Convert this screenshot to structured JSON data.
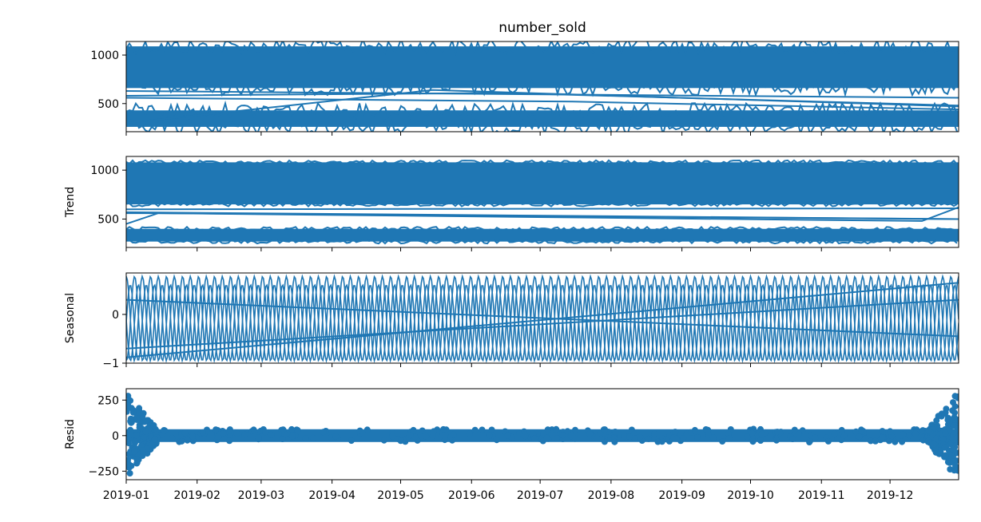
{
  "figure": {
    "title": "number_sold"
  },
  "colors": {
    "series": "#1f77b4",
    "axes": "#000000",
    "background": "#ffffff"
  },
  "chart_data": [
    {
      "type": "line",
      "panel": "observed",
      "title": "number_sold",
      "ylabel": "",
      "x_range": [
        "2019-01-01",
        "2019-12-31"
      ],
      "x_ticks": [
        "2019-01",
        "2019-02",
        "2019-03",
        "2019-04",
        "2019-05",
        "2019-06",
        "2019-07",
        "2019-08",
        "2019-09",
        "2019-10",
        "2019-11",
        "2019-12"
      ],
      "ylim": [
        210,
        1140
      ],
      "y_ticks": [
        500,
        1000
      ],
      "grid": false,
      "legend": "none",
      "series_bands": [
        {
          "x_start": "2019-01-01",
          "x_end": "2019-12-31",
          "y_low": 660,
          "y_high": 1090
        },
        {
          "x_start": "2019-01-01",
          "x_end": "2019-12-31",
          "y_low": 260,
          "y_high": 430
        }
      ],
      "series_lines": [
        {
          "x": [
            "2019-01-01",
            "2019-06-15",
            "2019-12-31"
          ],
          "y": [
            580,
            610,
            480
          ]
        },
        {
          "x": [
            "2019-01-01",
            "2019-07-15",
            "2019-12-31"
          ],
          "y": [
            560,
            520,
            440
          ]
        },
        {
          "x": [
            "2019-01-01",
            "2019-05-15",
            "2019-12-31"
          ],
          "y": [
            300,
            640,
            470
          ]
        },
        {
          "x": [
            "2019-01-01",
            "2019-12-31"
          ],
          "y": [
            630,
            560
          ]
        }
      ]
    },
    {
      "type": "line",
      "panel": "trend",
      "ylabel": "Trend",
      "x_range": [
        "2019-01-01",
        "2019-12-31"
      ],
      "ylim": [
        210,
        1140
      ],
      "y_ticks": [
        500,
        1000
      ],
      "grid": false,
      "legend": "none",
      "series_bands": [
        {
          "x_start": "2019-01-01",
          "x_end": "2019-12-31",
          "y_low": 650,
          "y_high": 1080
        },
        {
          "x_start": "2019-01-01",
          "x_end": "2019-12-31",
          "y_low": 270,
          "y_high": 400
        }
      ],
      "series_lines": [
        {
          "x": [
            "2019-01-01",
            "2019-01-15",
            "2019-12-15",
            "2019-12-31"
          ],
          "y": [
            560,
            560,
            480,
            620
          ]
        },
        {
          "x": [
            "2019-01-01",
            "2019-12-31"
          ],
          "y": [
            570,
            500
          ]
        },
        {
          "x": [
            "2019-01-01",
            "2019-01-15",
            "2019-12-31"
          ],
          "y": [
            450,
            560,
            500
          ]
        },
        {
          "x": [
            "2019-01-01",
            "2019-12-31"
          ],
          "y": [
            600,
            610
          ]
        }
      ]
    },
    {
      "type": "line",
      "panel": "seasonal",
      "ylabel": "Seasonal",
      "x_range": [
        "2019-01-01",
        "2019-12-31"
      ],
      "ylim": [
        -1.0,
        0.85
      ],
      "y_ticks": [
        -1,
        0
      ],
      "grid": false,
      "legend": "none",
      "oscillation_period_days": 7,
      "amplitude_low": -0.95,
      "amplitude_high": 0.78,
      "series_lines": [
        {
          "x": [
            "2019-01-01",
            "2019-12-31"
          ],
          "y": [
            -0.88,
            0.65
          ]
        },
        {
          "x": [
            "2019-01-01",
            "2019-12-31"
          ],
          "y": [
            -0.7,
            0.3
          ]
        },
        {
          "x": [
            "2019-01-01",
            "2019-12-31"
          ],
          "y": [
            0.3,
            -0.45
          ]
        }
      ]
    },
    {
      "type": "scatter",
      "panel": "resid",
      "ylabel": "Resid",
      "x_range": [
        "2019-01-01",
        "2019-12-31"
      ],
      "ylim": [
        -310,
        330
      ],
      "y_ticks": [
        -250,
        0,
        250
      ],
      "grid": false,
      "legend": "none",
      "body_range": [
        -45,
        45
      ],
      "edge_range": [
        -300,
        310
      ]
    }
  ]
}
